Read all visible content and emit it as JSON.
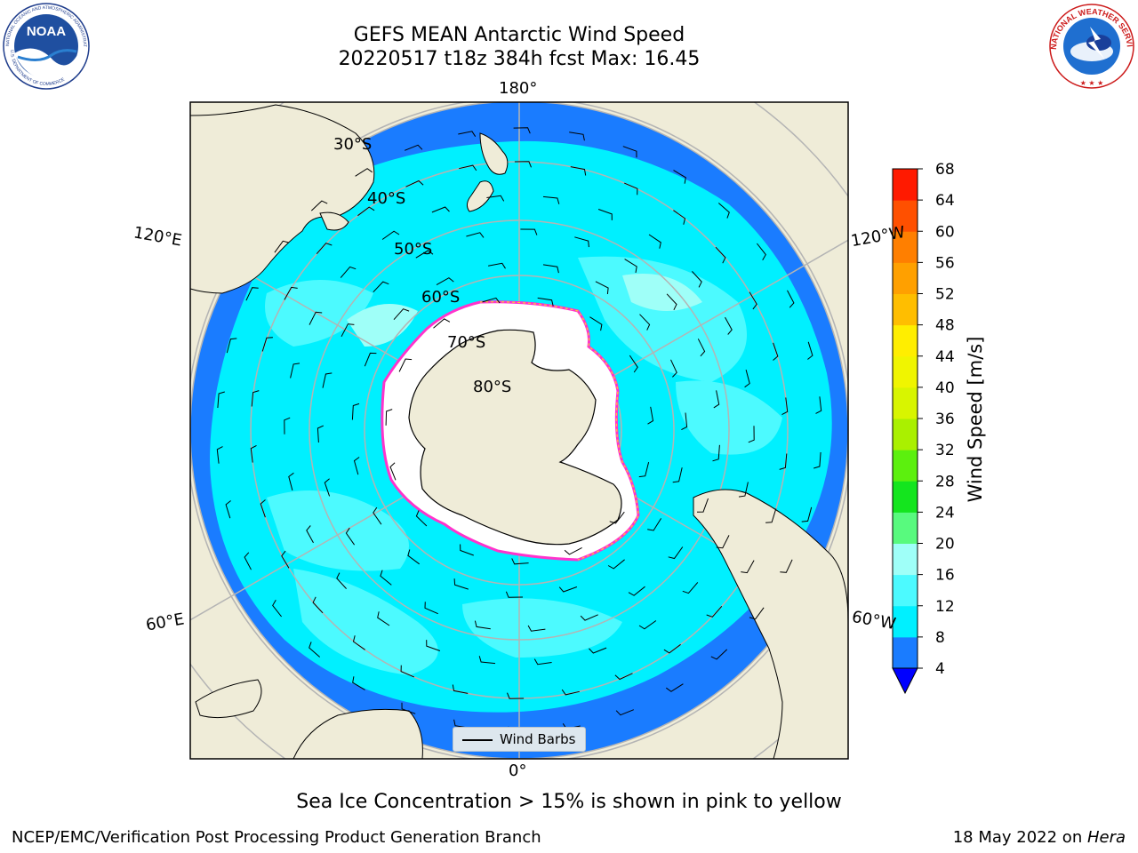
{
  "title": {
    "line1": "GEFS MEAN Antarctic Wind Speed",
    "line2": "20220517 t18z 384h fcst   Max: 16.45"
  },
  "logos": {
    "left": "noaa-logo",
    "right": "nws-logo"
  },
  "map": {
    "projection": "south-polar-stereographic",
    "longitude_labels": {
      "top": "180°",
      "bottom": "0°",
      "left_upper": "120°E",
      "right_upper": "120°W",
      "left_lower": "60°E",
      "right_lower": "60°W"
    },
    "latitude_labels": [
      "30°S",
      "40°S",
      "50°S",
      "60°S",
      "70°S",
      "80°S"
    ],
    "colors": {
      "land": "#efecd8",
      "ice_free_land": "#ffffff",
      "grid": "#b4b4b4",
      "coast": "#000000",
      "sea_ice_edge": [
        "#ff33cc",
        "#ffcc33"
      ]
    },
    "legend": {
      "label": "Wind Barbs"
    }
  },
  "colorbar": {
    "label": "Wind Speed [m/s]",
    "ticks": [
      "4",
      "8",
      "12",
      "16",
      "20",
      "24",
      "28",
      "32",
      "36",
      "40",
      "44",
      "48",
      "52",
      "56",
      "60",
      "64",
      "68"
    ],
    "bins": [
      {
        "from": 4,
        "to": 8,
        "color": "#1a7cff"
      },
      {
        "from": 8,
        "to": 12,
        "color": "#00f0ff"
      },
      {
        "from": 12,
        "to": 16,
        "color": "#4cfaff"
      },
      {
        "from": 16,
        "to": 20,
        "color": "#9ffff8"
      },
      {
        "from": 20,
        "to": 24,
        "color": "#58fa7e"
      },
      {
        "from": 24,
        "to": 28,
        "color": "#14e51e"
      },
      {
        "from": 28,
        "to": 32,
        "color": "#5cf00e"
      },
      {
        "from": 32,
        "to": 36,
        "color": "#aaf000"
      },
      {
        "from": 36,
        "to": 40,
        "color": "#d8f500"
      },
      {
        "from": 40,
        "to": 44,
        "color": "#f0f500"
      },
      {
        "from": 44,
        "to": 48,
        "color": "#ffee00"
      },
      {
        "from": 48,
        "to": 52,
        "color": "#ffbe00"
      },
      {
        "from": 52,
        "to": 56,
        "color": "#ffa000"
      },
      {
        "from": 56,
        "to": 60,
        "color": "#ff7f00"
      },
      {
        "from": 60,
        "to": 64,
        "color": "#ff5000"
      },
      {
        "from": 64,
        "to": 68,
        "color": "#ff1a00"
      }
    ],
    "under_color": "#0000ff",
    "over_color": "#ff0000"
  },
  "footer": {
    "note": "Sea Ice Concentration > 15% is shown in pink to yellow",
    "left": "NCEP/EMC/Verification Post Processing Product Generation Branch",
    "right_date": "18 May 2022 on ",
    "right_host": "Hera"
  }
}
